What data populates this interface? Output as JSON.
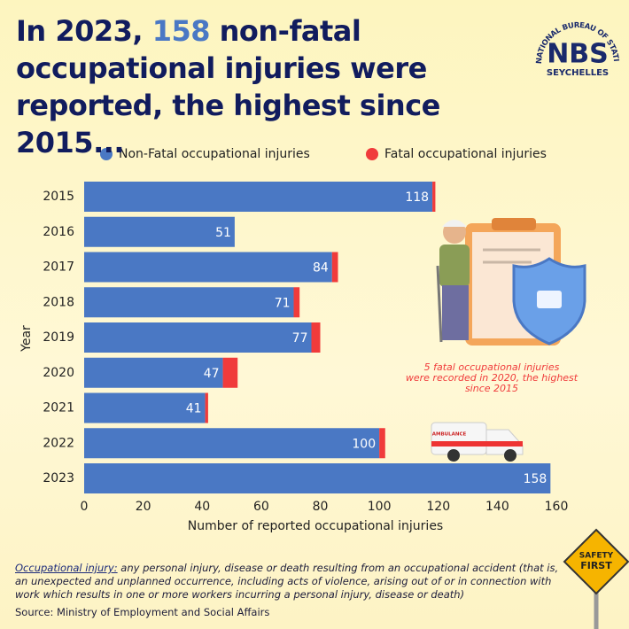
{
  "title": [
    "In 2023,",
    "158",
    "non-fatal occupational injuries were reported, the highest since 2015..."
  ],
  "logo": {
    "arc": "NATIONAL BUREAU OF STATISTICS",
    "mark": "NBS",
    "country": "SEYCHELLES"
  },
  "chart_data": {
    "type": "stacked_hbar",
    "categories": [
      "2015",
      "2016",
      "2017",
      "2018",
      "2019",
      "2020",
      "2021",
      "2022",
      "2023"
    ],
    "series": [
      {
        "name": "Non-Fatal occupational injuries",
        "color": "#4a78c4",
        "values": [
          118,
          51,
          84,
          71,
          77,
          47,
          41,
          100,
          158
        ]
      },
      {
        "name": "Fatal occupational injuries",
        "color": "#f03b3b",
        "values": [
          1,
          0,
          2,
          2,
          3,
          5,
          1,
          2,
          0
        ]
      }
    ],
    "xlim": [
      0,
      160
    ],
    "xticks": [
      0,
      20,
      40,
      60,
      80,
      100,
      120,
      140,
      160
    ],
    "xlabel": "Number of reported occupational injuries",
    "ylabel": "Year",
    "annotation": "5 fatal occupational injuries were recorded in 2020, the highest since 2015",
    "ambulance": "AMBULANCE"
  },
  "footnote": {
    "term": "Occupational injury:",
    "text": "any personal injury, disease or death resulting from an occupational accident (that is, an unexpected and unplanned occurrence, including acts of violence, arising out of or in connection with work which results in one or more workers incurring a personal injury, disease or death)",
    "source": "Source: Ministry of Employment and Social Affairs"
  },
  "sign": [
    "SAFETY",
    "FIRST"
  ]
}
